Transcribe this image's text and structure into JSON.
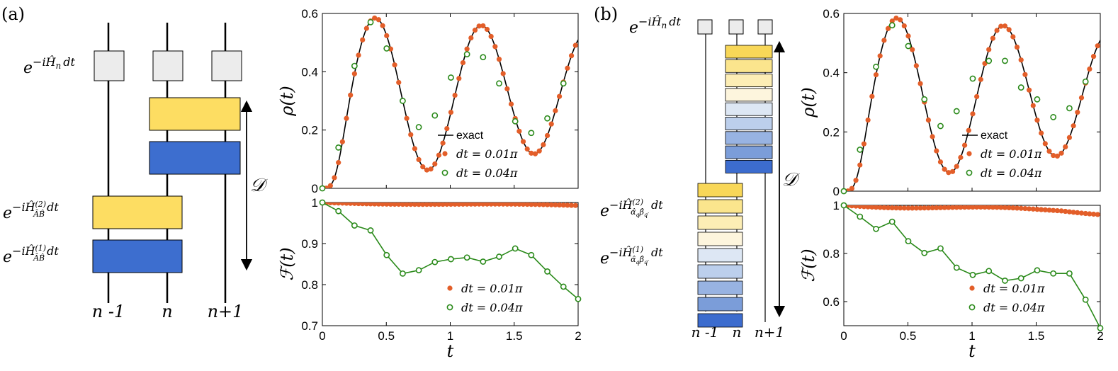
{
  "colors": {
    "exact": "#000000",
    "dt_small": "#e35e29",
    "dt_large": "#2a8a1a",
    "gate_gray": "#ececec",
    "yellow": "#fddd62",
    "blue": "#3d6ecf",
    "b_gradient": [
      "#f8d758",
      "#fbe58d",
      "#fdeeb5",
      "#fdf5dd",
      "#dde7f4",
      "#bccfec",
      "#98b3e2",
      "#7b9dd9",
      "#3c6cce"
    ]
  },
  "panel_labels": {
    "a": "(a)",
    "b": "(b)"
  },
  "diagram": {
    "single_gate": "e^{-iĤ_n dt}",
    "gate2": "e^{-iĤ^{(2)}_{ÂB̂} dt}",
    "gate1": "e^{-iĤ^{(1)}_{ÂB̂} dt}",
    "gate2_b": "e^{-iĤ^{(2)}_{α̂_q β̂_q'} dt}",
    "gate1_b": "e^{-iĤ^{(1)}_{α̂_q β̂_q'} dt}",
    "depth_label": "𝒟",
    "sites": [
      "n -1",
      "n",
      "n+1"
    ]
  },
  "text": {
    "exp_prefix": "e",
    "exp_minus_i": "−i",
    "H": "Ĥ",
    "sub_n": "n",
    "dt": "dt",
    "sup2": "(2)",
    "sup1": "(1)",
    "sub_AB": "ÂB̂",
    "alpha": "α̂",
    "q": "q",
    "beta": "β̂",
    "qprime": "q′"
  },
  "chart_data": [
    {
      "id": "a-top",
      "type": "line",
      "ylabel": "ρ(t)",
      "xlim": [
        0,
        2
      ],
      "ylim": [
        0,
        0.6
      ],
      "yticks": [
        "0",
        "0.2",
        "0.4",
        "0.6"
      ],
      "legend": [
        "exact",
        "dt = 0.01π",
        "dt = 0.04π"
      ],
      "series": [
        {
          "name": "exact",
          "kind": "line"
        },
        {
          "name": "dt = 0.01π",
          "kind": "filled",
          "step": 0.0314159
        },
        {
          "name": "dt = 0.04π",
          "kind": "open",
          "x": [
            0,
            0.1257,
            0.2513,
            0.377,
            0.5027,
            0.6283,
            0.754,
            0.8796,
            1.0053,
            1.131,
            1.2566,
            1.3823,
            1.508,
            1.6336,
            1.7593,
            1.885
          ],
          "y": [
            0,
            0.14,
            0.42,
            0.57,
            0.48,
            0.3,
            0.21,
            0.25,
            0.38,
            0.46,
            0.45,
            0.36,
            0.23,
            0.19,
            0.24,
            0.36
          ]
        }
      ]
    },
    {
      "id": "a-bottom",
      "type": "line",
      "xlabel": "t",
      "ylabel": "ℱ(t)",
      "xlim": [
        0,
        2
      ],
      "ylim": [
        0.7,
        1
      ],
      "xticks": [
        "0",
        "0.5",
        "1",
        "1.5",
        "2"
      ],
      "yticks": [
        "0.7",
        "0.8",
        "0.9",
        "1"
      ],
      "legend": [
        "dt = 0.01π",
        "dt = 0.04π"
      ],
      "series": [
        {
          "name": "dt = 0.01π",
          "kind": "filled",
          "step": 0.0314159
        },
        {
          "name": "dt = 0.04π",
          "kind": "open-line",
          "x": [
            0,
            0.1257,
            0.2513,
            0.377,
            0.5027,
            0.6283,
            0.754,
            0.8796,
            1.0053,
            1.131,
            1.2566,
            1.3823,
            1.508,
            1.6336,
            1.7593,
            1.885,
            2.0
          ],
          "y": [
            1,
            0.979,
            0.944,
            0.932,
            0.872,
            0.827,
            0.835,
            0.855,
            0.862,
            0.866,
            0.856,
            0.868,
            0.888,
            0.872,
            0.832,
            0.795,
            0.765
          ]
        }
      ]
    },
    {
      "id": "b-top",
      "type": "line",
      "ylabel": "ρ(t)",
      "xlim": [
        0,
        2
      ],
      "ylim": [
        0,
        0.6
      ],
      "yticks": [
        "0",
        "0.2",
        "0.4",
        "0.6"
      ],
      "legend": [
        "exact",
        "dt = 0.01π",
        "dt = 0.04π"
      ],
      "series": [
        {
          "name": "exact",
          "kind": "line"
        },
        {
          "name": "dt = 0.01π",
          "kind": "filled",
          "step": 0.0314159
        },
        {
          "name": "dt = 0.04π",
          "kind": "open",
          "x": [
            0,
            0.1257,
            0.2513,
            0.377,
            0.5027,
            0.6283,
            0.754,
            0.8796,
            1.0053,
            1.131,
            1.2566,
            1.3823,
            1.508,
            1.6336,
            1.7593,
            1.885
          ],
          "y": [
            0,
            0.14,
            0.42,
            0.56,
            0.49,
            0.31,
            0.22,
            0.27,
            0.38,
            0.44,
            0.44,
            0.35,
            0.31,
            0.25,
            0.28,
            0.37
          ]
        }
      ]
    },
    {
      "id": "b-bottom",
      "type": "line",
      "xlabel": "t",
      "ylabel": "ℱ(t)",
      "xlim": [
        0,
        2
      ],
      "ylim": [
        0.5,
        1
      ],
      "xticks": [
        "0",
        "0.5",
        "1",
        "1.5",
        "2"
      ],
      "yticks": [
        "0.6",
        "0.8",
        "1"
      ],
      "legend": [
        "dt = 0.01π",
        "dt = 0.04π"
      ],
      "series": [
        {
          "name": "dt = 0.01π",
          "kind": "filled",
          "step": 0.0314159
        },
        {
          "name": "dt = 0.04π",
          "kind": "open-line",
          "x": [
            0,
            0.1257,
            0.2513,
            0.377,
            0.5027,
            0.6283,
            0.754,
            0.8796,
            1.0053,
            1.131,
            1.2566,
            1.3823,
            1.508,
            1.6336,
            1.7593,
            1.885,
            2.0
          ],
          "y": [
            1,
            0.953,
            0.902,
            0.932,
            0.851,
            0.802,
            0.821,
            0.741,
            0.711,
            0.727,
            0.687,
            0.697,
            0.73,
            0.717,
            0.717,
            0.608,
            0.49
          ]
        }
      ]
    }
  ]
}
